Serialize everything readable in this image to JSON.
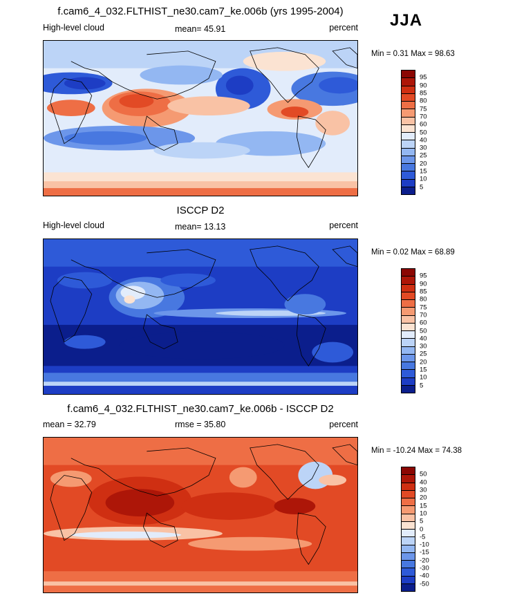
{
  "season": "JJA",
  "colors": {
    "abs_scale": [
      "#0b1e8c",
      "#1d3dc4",
      "#2e5ad8",
      "#4878e0",
      "#6c96ea",
      "#93b7f2",
      "#bcd4f7",
      "#e2ecfb",
      "#fbe3d2",
      "#f9c2a5",
      "#f59a72",
      "#ee6e45",
      "#e24a25",
      "#cf2f12",
      "#ad1608",
      "#8b0703"
    ],
    "diff_scale": [
      "#0b1e8c",
      "#1d3dc4",
      "#2e5ad8",
      "#4878e0",
      "#6c96ea",
      "#93b7f2",
      "#bcd4f7",
      "#e2ecfb",
      "#fbe3d2",
      "#f9c2a5",
      "#f59a72",
      "#ee6e45",
      "#e24a25",
      "#cf2f12",
      "#ad1608",
      "#8b0703"
    ]
  },
  "panels": [
    {
      "title": "f.cam6_4_032.FLTHIST_ne30.cam7_ke.006b (yrs 1995-2004)",
      "left_label": "High-level cloud",
      "center_label": "mean=  45.91",
      "right_label": "percent",
      "minmax": "Min =   0.31 Max =  98.63",
      "colorbar_ticks": [
        "95",
        "90",
        "85",
        "80",
        "75",
        "70",
        "60",
        "50",
        "40",
        "30",
        "25",
        "20",
        "15",
        "10",
        "5"
      ]
    },
    {
      "title": "ISCCP D2",
      "left_label": "High-level cloud",
      "center_label": "mean=  13.13",
      "right_label": "percent",
      "minmax": "Min =   0.02 Max =  68.89",
      "colorbar_ticks": [
        "95",
        "90",
        "85",
        "80",
        "75",
        "70",
        "60",
        "50",
        "40",
        "30",
        "25",
        "20",
        "15",
        "10",
        "5"
      ]
    },
    {
      "title": "f.cam6_4_032.FLTHIST_ne30.cam7_ke.006b - ISCCP D2",
      "left_label": "mean =  32.79",
      "center_label": "rmse =  35.80",
      "right_label": "percent",
      "minmax": "Min = -10.24 Max =  74.38",
      "colorbar_ticks": [
        "50",
        "40",
        "30",
        "20",
        "15",
        "10",
        "5",
        "0",
        "-5",
        "-10",
        "-15",
        "-20",
        "-30",
        "-40",
        "-50"
      ]
    }
  ]
}
